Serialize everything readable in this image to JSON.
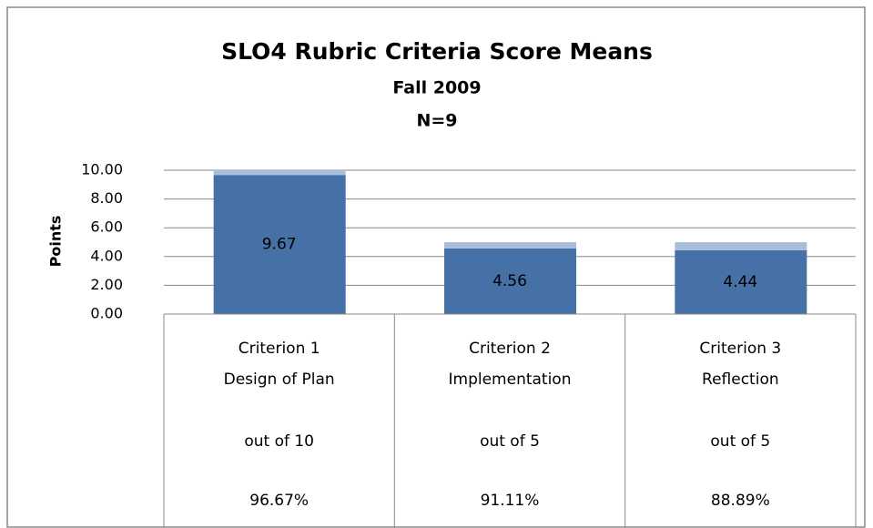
{
  "chart_data": {
    "type": "stacked_bar",
    "title": "SLO4 Rubric Criteria Score Means",
    "subtitle": [
      "Fall 2009",
      "N=9"
    ],
    "y_label": "Points",
    "categories": [
      [
        "Criterion 1",
        "Design of Plan"
      ],
      [
        "Criterion 2",
        "Implementation"
      ],
      [
        "Criterion 3",
        "Reflection"
      ]
    ],
    "category_details": [
      [
        "out of 10",
        "out of 5",
        "out of 5"
      ],
      [
        "96.67%",
        "91.11%",
        "88.89%"
      ]
    ],
    "series": [
      {
        "color": "#4571a6",
        "values": [
          9.67,
          4.56,
          4.44
        ],
        "data_labels": true
      },
      {
        "color": "#a8bedb",
        "values": [
          0.33,
          0.44,
          0.56
        ],
        "data_labels": false
      }
    ],
    "ylim": [
      0,
      10
    ],
    "yticks": [
      {
        "value": 0,
        "label": "0.00"
      },
      {
        "value": 2,
        "label": "2.00"
      },
      {
        "value": 4,
        "label": "4.00"
      },
      {
        "value": 6,
        "label": "6.00"
      },
      {
        "value": 8,
        "label": "8.00"
      },
      {
        "value": 10,
        "label": "10.00"
      }
    ],
    "grid": true
  }
}
